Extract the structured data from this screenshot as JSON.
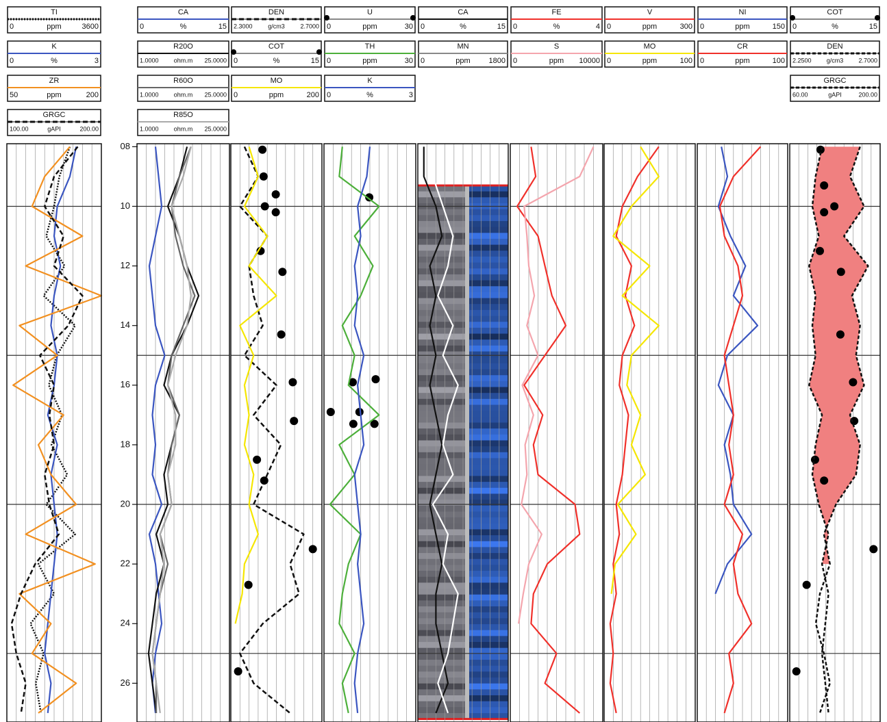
{
  "chart_data": {
    "type": "log",
    "ylim": [
      7.9,
      27.3
    ],
    "yticks": [
      {
        "value": 8,
        "label": "08"
      },
      10,
      12,
      14,
      16,
      18,
      20,
      22,
      24,
      26
    ],
    "depth_grid": [
      10,
      15,
      20,
      25
    ],
    "depth": [
      8,
      9,
      10,
      11,
      12,
      13,
      14,
      15,
      16,
      17,
      18,
      19,
      20,
      21,
      22,
      23,
      24,
      25,
      26,
      27
    ],
    "tracks": [
      {
        "curves": [
          {
            "name": "TI",
            "color": "#111111",
            "dash": "2,2",
            "min": 0,
            "unit": "ppm",
            "max": 3600,
            "values": [
              2400,
              2000,
              1800,
              1500,
              2200,
              1400,
              2600,
              1900,
              1600,
              2100,
              1700,
              2300,
              1500,
              2600,
              1200,
              1800,
              900,
              1400,
              1100,
              1300
            ]
          },
          {
            "name": "K",
            "color": "#3a55c0",
            "min": 0,
            "unit": "%",
            "max": 3,
            "values": [
              2.2,
              2.0,
              1.6,
              1.5,
              1.7,
              1.5,
              1.4,
              1.6,
              1.5,
              1.3,
              1.6,
              1.4,
              1.5,
              1.6,
              1.5,
              1.4,
              1.3,
              1.2,
              1.4,
              1.3
            ]
          },
          {
            "name": "ZR",
            "color": "#f29020",
            "min": 50,
            "unit": "ppm",
            "max": 200,
            "values": [
              150,
              110,
              90,
              170,
              80,
              200,
              70,
              130,
              60,
              140,
              100,
              120,
              160,
              80,
              190,
              70,
              120,
              90,
              160,
              100
            ]
          },
          {
            "name": "GRGC",
            "color": "#111111",
            "dash": "7,4",
            "min": {
              "value": 100,
              "label": "100.00"
            },
            "unit": "gAPI",
            "max": {
              "value": 200,
              "label": "200.00"
            },
            "values": [
              175,
              150,
              140,
              160,
              150,
              180,
              165,
              135,
              150,
              145,
              150,
              140,
              145,
              155,
              130,
              115,
              105,
              110,
              120,
              115
            ]
          }
        ]
      },
      {
        "curves": [
          {
            "name": "CA",
            "color": "#3a55c0",
            "min": 0,
            "unit": "%",
            "max": 15,
            "values": [
              3,
              3.5,
              4,
              3,
              2,
              2.5,
              3,
              4.5,
              3,
              2.5,
              3,
              2.5,
              4,
              2,
              3,
              3.5,
              4,
              3,
              2.5,
              3
            ]
          },
          {
            "name": "R20O",
            "color": "#111111",
            "min": {
              "value": 1,
              "label": "1.0000"
            },
            "unit": "ohm.m",
            "max": {
              "value": 25,
              "label": "25.0000"
            },
            "values": [
              14,
              12,
              9,
              12,
              14,
              17,
              14,
              10,
              8,
              12,
              10,
              8,
              9,
              6,
              8,
              6,
              5,
              4,
              5,
              6
            ]
          },
          {
            "name": "R60O",
            "color": "#666666",
            "min": {
              "value": 1,
              "label": "1.0000"
            },
            "unit": "ohm.m",
            "max": {
              "value": 25,
              "label": "25.0000"
            },
            "values": [
              15,
              12,
              10,
              11,
              13,
              16,
              13,
              10,
              9,
              12,
              10,
              9,
              10,
              7,
              9,
              7,
              6,
              5,
              6,
              6
            ]
          },
          {
            "name": "R85O",
            "color": "#aaaaaa",
            "min": {
              "value": 1,
              "label": "1.0000"
            },
            "unit": "ohm.m",
            "max": {
              "value": 25,
              "label": "25.0000"
            },
            "values": [
              15,
              13,
              10,
              12,
              14,
              15,
              14,
              11,
              9,
              11,
              11,
              9,
              10,
              7,
              8,
              7,
              6,
              5,
              6,
              7
            ]
          }
        ]
      },
      {
        "curves": [
          {
            "name": "DEN",
            "color": "#111111",
            "dash": "7,4",
            "min": {
              "value": 2.3,
              "label": "2.3000"
            },
            "unit": "g/cm3",
            "max": {
              "value": 2.7,
              "label": "2.7000"
            },
            "values": [
              2.36,
              2.42,
              2.34,
              2.46,
              2.38,
              2.4,
              2.44,
              2.36,
              2.5,
              2.4,
              2.52,
              2.46,
              2.4,
              2.62,
              2.56,
              2.6,
              2.44,
              2.34,
              2.4,
              2.56
            ]
          },
          {
            "name": "COT",
            "color": "#000000",
            "markers": true,
            "min": 0,
            "unit": "%",
            "max": 15,
            "depth": [
              8.1,
              9,
              9.6,
              10,
              10.2,
              11.5,
              12.2,
              14.3,
              15.9,
              17.2,
              18.5,
              19.2,
              21.5,
              22.7,
              25.6
            ],
            "values": [
              5.2,
              5.4,
              7.4,
              5.6,
              7.4,
              4.9,
              8.5,
              8.3,
              10.2,
              10.4,
              4.3,
              5.5,
              13.5,
              2.9,
              1.2
            ]
          },
          {
            "name": "MO",
            "color": "#f5e600",
            "min": 0,
            "unit": "ppm",
            "max": 200,
            "values": [
              40,
              60,
              30,
              80,
              40,
              100,
              20,
              50,
              30,
              40,
              30,
              50,
              40,
              60,
              30,
              25,
              10,
              null,
              null,
              null
            ]
          }
        ]
      },
      {
        "curves": [
          {
            "name": "U",
            "color": "#000000",
            "markers": true,
            "min": 0,
            "unit": "ppm",
            "max": 30,
            "depth": [
              9.7,
              15.9,
              15.8,
              16.9,
              16.9,
              17.3,
              17.3
            ],
            "values": [
              14.8,
              9.4,
              16.9,
              2.2,
              11.6,
              9.6,
              16.5
            ]
          },
          {
            "name": "TH",
            "color": "#4caf3a",
            "min": 0,
            "unit": "ppm",
            "max": 30,
            "values": [
              6,
              5,
              18,
              10,
              16,
              12,
              6,
              10,
              8,
              18,
              5,
              10,
              2,
              12,
              8,
              6,
              5,
              10,
              6,
              8
            ]
          },
          {
            "name": "K",
            "color": "#3a55c0",
            "min": 0,
            "unit": "%",
            "max": 3,
            "values": [
              1.5,
              1.4,
              1.1,
              1.2,
              1.0,
              1.1,
              1.0,
              1.3,
              1.1,
              1.2,
              1.3,
              1.0,
              1.1,
              1.2,
              1.1,
              1.2,
              1.3,
              1.1,
              1.0,
              1.1
            ]
          }
        ]
      },
      {
        "image_interval": [
          9.3,
          27.2
        ],
        "curves": [
          {
            "name": "CA",
            "color": "#111111",
            "min": 0,
            "unit": "%",
            "max": 15,
            "values": [
              1,
              1,
              3,
              4,
              2,
              3,
              2,
              3,
              2,
              3,
              4,
              3,
              2,
              3,
              4,
              3,
              3,
              4,
              5,
              3
            ]
          },
          {
            "name": "MN",
            "color": "#ffffff",
            "min": 0,
            "unit": "ppm",
            "max": 1800,
            "values": [
              200,
              300,
              500,
              700,
              600,
              400,
              700,
              500,
              800,
              600,
              500,
              700,
              300,
              600,
              500,
              800,
              700,
              600,
              400,
              600
            ]
          }
        ]
      },
      {
        "curves": [
          {
            "name": "FE",
            "color": "#f0302a",
            "min": 0,
            "unit": "%",
            "max": 4,
            "values": [
              0.9,
              1.1,
              0.3,
              1.2,
              1.5,
              1.8,
              2.4,
              1.5,
              0.6,
              1.4,
              1.0,
              1.2,
              2.8,
              3.0,
              1.6,
              1.0,
              0.9,
              2.0,
              1.5,
              3.0
            ]
          },
          {
            "name": "S",
            "color": "#f4a5ad",
            "min": 0,
            "unit": "ppm",
            "max": 10000,
            "values": [
              9000,
              7500,
              1500,
              1800,
              2000,
              2600,
              1800,
              3000,
              1300,
              2500,
              1600,
              1800,
              1200,
              3400,
              2000,
              1400,
              900,
              null,
              null,
              null
            ]
          }
        ]
      },
      {
        "curves": [
          {
            "name": "V",
            "color": "#f0302a",
            "min": 0,
            "unit": "ppm",
            "max": 300,
            "values": [
              180,
              110,
              60,
              40,
              90,
              70,
              100,
              60,
              50,
              80,
              70,
              60,
              40,
              50,
              30,
              40,
              20,
              30,
              20,
              40
            ]
          },
          {
            "name": "MO",
            "color": "#f5e600",
            "min": 0,
            "unit": "ppm",
            "max": 100,
            "values": [
              40,
              60,
              30,
              10,
              50,
              20,
              60,
              30,
              25,
              40,
              30,
              45,
              15,
              35,
              12,
              8,
              null,
              null,
              null,
              null
            ]
          }
        ]
      },
      {
        "curves": [
          {
            "name": "NI",
            "color": "#3a55c0",
            "min": 0,
            "unit": "ppm",
            "max": 150,
            "values": [
              40,
              50,
              35,
              55,
              80,
              60,
              100,
              50,
              35,
              60,
              45,
              55,
              60,
              90,
              50,
              30,
              null,
              null,
              null,
              null
            ]
          },
          {
            "name": "CR",
            "color": "#f0302a",
            "min": 0,
            "unit": "ppm",
            "max": 100,
            "values": [
              70,
              40,
              25,
              30,
              45,
              50,
              40,
              30,
              35,
              40,
              35,
              40,
              30,
              50,
              40,
              45,
              60,
              35,
              40,
              30
            ]
          }
        ]
      },
      {
        "fill_color": "#f08080",
        "curves": [
          {
            "name": "COT",
            "color": "#000000",
            "markers": true,
            "min": 0,
            "unit": "%",
            "max": 15,
            "depth": [
              8.1,
              9.3,
              10,
              10.2,
              11.5,
              12.2,
              14.3,
              15.9,
              17.2,
              18.5,
              19.2,
              21.5,
              22.7,
              25.6
            ],
            "values": [
              5.1,
              5.7,
              7.4,
              5.7,
              5.0,
              8.5,
              8.4,
              10.5,
              10.7,
              4.2,
              5.7,
              13.9,
              2.8,
              1.1
            ]
          },
          {
            "name": "DEN",
            "color": "#111111",
            "dash": "5,3",
            "min": {
              "value": 2.25,
              "label": "2.2500"
            },
            "unit": "g/cm3",
            "max": {
              "value": 2.7,
              "label": "2.7000"
            },
            "values": [
              2.6,
              2.55,
              2.62,
              2.52,
              2.64,
              2.56,
              2.6,
              2.58,
              2.62,
              2.55,
              2.6,
              2.58,
              2.48,
              2.42,
              2.45,
              2.4,
              2.38,
              2.42,
              2.45,
              2.4
            ]
          },
          {
            "name": "GRGC",
            "color": "#111111",
            "dash": "5,3",
            "min": {
              "value": 60,
              "label": "60.00"
            },
            "unit": "gAPI",
            "max": {
              "value": 200,
              "label": "200.00"
            },
            "values": [
              110,
              100,
              95,
              105,
              90,
              100,
              95,
              100,
              90,
              110,
              100,
              95,
              105,
              120,
              110,
              120,
              115,
              110,
              115,
              120
            ]
          }
        ]
      }
    ]
  }
}
